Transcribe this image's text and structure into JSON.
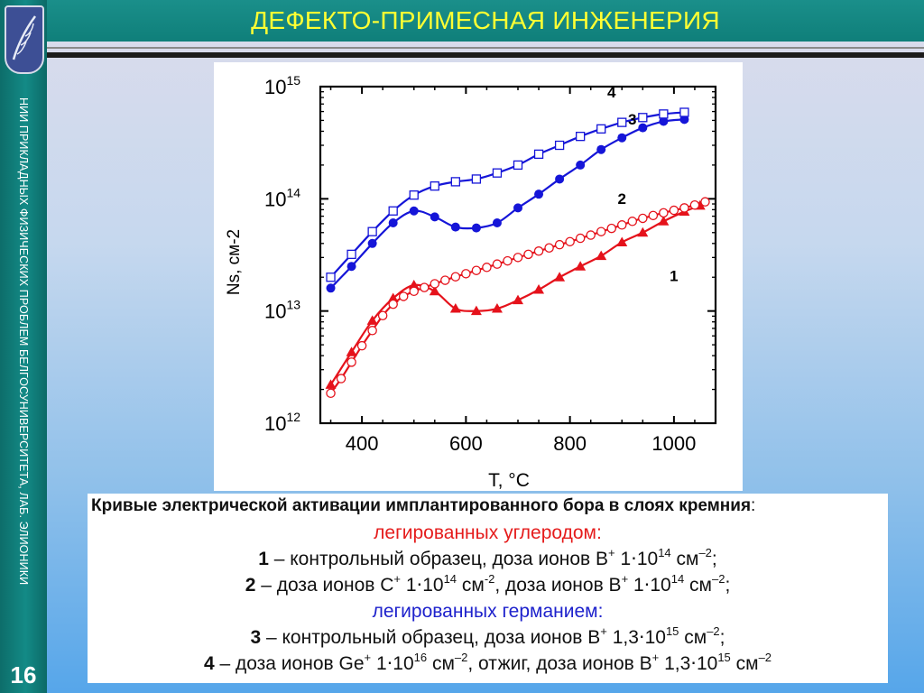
{
  "header": {
    "title": "ДЕФЕКТО-ПРИМЕСНАЯ ИНЖЕНЕРИЯ"
  },
  "sidebar": {
    "org_text": "НИИ ПРИКЛАДНЫХ ФИЗИЧЕСКИХ ПРОБЛЕМ БЕЛГОСУНИВЕРСИТЕТА, ЛАБ. ЭЛИОНИКИ",
    "slide_number": "16"
  },
  "caption": {
    "heading": "Кривые электрической активации имплантированного бора в слоях кремния",
    "heading_colon": ":",
    "group1": "легированных углеродом:",
    "group2": "легированных германием:",
    "item1": {
      "num": "1",
      "a": " – контрольный образец, доза ионов B",
      "sup1": "+",
      "b": " 1⋅10",
      "sup2": "14",
      "c": " см",
      "sup3": "–2",
      "d": ";"
    },
    "item2": {
      "num": "2",
      "a": " – доза ионов C",
      "sup1": "+",
      "b": " 1⋅10",
      "sup2": "14",
      "c": " см",
      "sup3": "-2",
      "d": ", доза ионов B",
      "sup4": "+",
      "e": " 1⋅10",
      "sup5": "14",
      "f": " см",
      "sup6": "–2",
      "g": ";"
    },
    "item3": {
      "num": "3",
      "a": " – контрольный образец, доза ионов B",
      "sup1": "+",
      "b": " 1,3⋅10",
      "sup2": "15",
      "c": " см",
      "sup3": "–2",
      "d": ";"
    },
    "item4": {
      "num": "4",
      "a": " – доза ионов Ge",
      "sup1": "+",
      "b": " 1⋅10",
      "sup2": "16",
      "c": " см",
      "sup3": "–2",
      "d": ", отжиг, доза ионов B",
      "sup4": "+",
      "e": " 1,3⋅10",
      "sup5": "15",
      "f": " см",
      "sup6": "–2"
    }
  },
  "chart_data": {
    "type": "line",
    "xlabel": "T, °C",
    "ylabel": "Ns, см-2",
    "yscale": "log",
    "xlim": [
      320,
      1080
    ],
    "ylim": [
      1000000000000.0,
      1000000000000000.0
    ],
    "xticks": [
      400,
      600,
      800,
      1000
    ],
    "xtick_labels": [
      "400",
      "600",
      "800",
      "1000"
    ],
    "ytick_labels": [
      {
        "base": "10",
        "exp": "12"
      },
      {
        "base": "10",
        "exp": "13"
      },
      {
        "base": "10",
        "exp": "14"
      },
      {
        "base": "10",
        "exp": "15"
      }
    ],
    "grid": false,
    "series": [
      {
        "name": "1",
        "color": "#e5121b",
        "marker": "triangle-filled",
        "x": [
          340,
          380,
          420,
          460,
          500,
          540,
          580,
          620,
          660,
          700,
          740,
          780,
          820,
          860,
          900,
          940,
          980,
          1020,
          1050
        ],
        "y": [
          2200000000000.0,
          4300000000000.0,
          8200000000000.0,
          13000000000000.0,
          17000000000000.0,
          15000000000000.0,
          10500000000000.0,
          10000000000000.0,
          10500000000000.0,
          12500000000000.0,
          15500000000000.0,
          20000000000000.0,
          25000000000000.0,
          31000000000000.0,
          41000000000000.0,
          50000000000000.0,
          63000000000000.0,
          77000000000000.0,
          87000000000000.0
        ]
      },
      {
        "name": "2",
        "color": "#e5121b",
        "marker": "circle-open",
        "x": [
          340,
          360,
          380,
          400,
          420,
          440,
          460,
          480,
          500,
          520,
          540,
          560,
          580,
          600,
          620,
          640,
          660,
          680,
          700,
          720,
          740,
          760,
          780,
          800,
          820,
          840,
          860,
          880,
          900,
          920,
          940,
          960,
          980,
          1000,
          1020,
          1040,
          1060
        ],
        "y": [
          1850000000000.0,
          2500000000000.0,
          3500000000000.0,
          4900000000000.0,
          6700000000000.0,
          9100000000000.0,
          11500000000000.0,
          13500000000000.0,
          15000000000000.0,
          16200000000000.0,
          17500000000000.0,
          18800000000000.0,
          20200000000000.0,
          21500000000000.0,
          23000000000000.0,
          24500000000000.0,
          26200000000000.0,
          28000000000000.0,
          30000000000000.0,
          32000000000000.0,
          34200000000000.0,
          36500000000000.0,
          39000000000000.0,
          41500000000000.0,
          44500000000000.0,
          47500000000000.0,
          51000000000000.0,
          54500000000000.0,
          58500000000000.0,
          63000000000000.0,
          67000000000000.0,
          71000000000000.0,
          75000000000000.0,
          79000000000000.0,
          83000000000000.0,
          88000000000000.0,
          94000000000000.0
        ]
      },
      {
        "name": "3",
        "color": "#1515d8",
        "marker": "circle-filled",
        "x": [
          340,
          380,
          420,
          460,
          500,
          540,
          580,
          620,
          660,
          700,
          740,
          780,
          820,
          860,
          900,
          940,
          980,
          1020
        ],
        "y": [
          16000000000000.0,
          25000000000000.0,
          40000000000000.0,
          61000000000000.0,
          78000000000000.0,
          69000000000000.0,
          56000000000000.0,
          55000000000000.0,
          61000000000000.0,
          83000000000000.0,
          110000000000000.0,
          150000000000000.0,
          200000000000000.0,
          275000000000000.0,
          350000000000000.0,
          430000000000000.0,
          490000000000000.0,
          510000000000000.0
        ]
      },
      {
        "name": "4",
        "color": "#1515d8",
        "marker": "square-open",
        "x": [
          340,
          380,
          420,
          460,
          500,
          540,
          580,
          620,
          660,
          700,
          740,
          780,
          820,
          860,
          900,
          940,
          980,
          1020
        ],
        "y": [
          20000000000000.0,
          32000000000000.0,
          51000000000000.0,
          78000000000000.0,
          108000000000000.0,
          130000000000000.0,
          142000000000000.0,
          150000000000000.0,
          170000000000000.0,
          200000000000000.0,
          250000000000000.0,
          300000000000000.0,
          360000000000000.0,
          420000000000000.0,
          480000000000000.0,
          530000000000000.0,
          570000000000000.0,
          590000000000000.0
        ]
      }
    ],
    "annotations": [
      {
        "text": "1",
        "x": 1000,
        "y": 18500000000000.0
      },
      {
        "text": "2",
        "x": 900,
        "y": 90000000000000.0
      },
      {
        "text": "3",
        "x": 920,
        "y": 460000000000000.0
      },
      {
        "text": "4",
        "x": 880,
        "y": 800000000000000.0
      }
    ]
  }
}
